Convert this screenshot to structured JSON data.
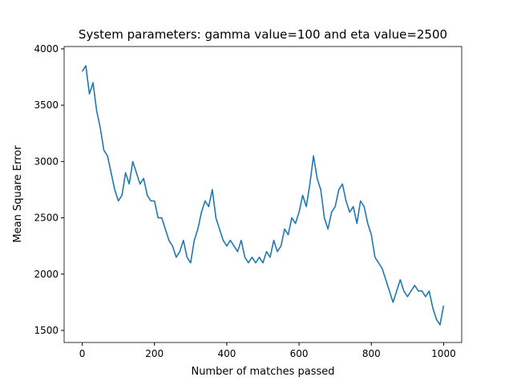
{
  "chart_data": {
    "type": "line",
    "title": "System parameters: gamma value=100 and eta value=2500",
    "x_label": "Number of matches passed",
    "y_label": "Mean Square Error",
    "x": [
      0,
      10,
      20,
      30,
      40,
      50,
      60,
      70,
      80,
      90,
      100,
      110,
      120,
      130,
      140,
      150,
      160,
      170,
      180,
      190,
      200,
      210,
      220,
      230,
      240,
      250,
      260,
      270,
      280,
      290,
      300,
      310,
      320,
      330,
      340,
      350,
      360,
      370,
      380,
      390,
      400,
      410,
      420,
      430,
      440,
      450,
      460,
      470,
      480,
      490,
      500,
      510,
      520,
      530,
      540,
      550,
      560,
      570,
      580,
      590,
      600,
      610,
      620,
      630,
      640,
      650,
      660,
      670,
      680,
      690,
      700,
      710,
      720,
      730,
      740,
      750,
      760,
      770,
      780,
      790,
      800,
      810,
      820,
      830,
      840,
      850,
      860,
      870,
      880,
      890,
      900,
      910,
      920,
      930,
      940,
      950,
      960,
      970,
      980,
      990,
      1000
    ],
    "series": [
      {
        "name": "MSE",
        "color": "#1f77b4",
        "values": [
          3800,
          3850,
          3600,
          3700,
          3450,
          3300,
          3100,
          3050,
          2900,
          2750,
          2650,
          2700,
          2900,
          2800,
          3000,
          2900,
          2800,
          2850,
          2700,
          2650,
          2650,
          2500,
          2500,
          2400,
          2300,
          2250,
          2150,
          2200,
          2300,
          2150,
          2100,
          2300,
          2400,
          2550,
          2650,
          2600,
          2750,
          2500,
          2400,
          2300,
          2250,
          2300,
          2250,
          2200,
          2300,
          2150,
          2100,
          2150,
          2100,
          2150,
          2100,
          2200,
          2150,
          2300,
          2200,
          2250,
          2400,
          2350,
          2500,
          2450,
          2550,
          2700,
          2600,
          2800,
          3050,
          2850,
          2750,
          2500,
          2400,
          2550,
          2600,
          2750,
          2800,
          2650,
          2550,
          2600,
          2450,
          2650,
          2600,
          2450,
          2350,
          2150,
          2100,
          2050,
          1950,
          1850,
          1750,
          1850,
          1950,
          1850,
          1800,
          1850,
          1900,
          1850,
          1850,
          1800,
          1850,
          1700,
          1600,
          1550,
          1720
        ]
      }
    ],
    "xlim": [
      -50,
      1050
    ],
    "ylim": [
      1393,
      4021
    ],
    "xticks": [
      0,
      200,
      400,
      600,
      800,
      1000
    ],
    "yticks": [
      1500,
      2000,
      2500,
      3000,
      3500,
      4000
    ],
    "grid": false
  }
}
